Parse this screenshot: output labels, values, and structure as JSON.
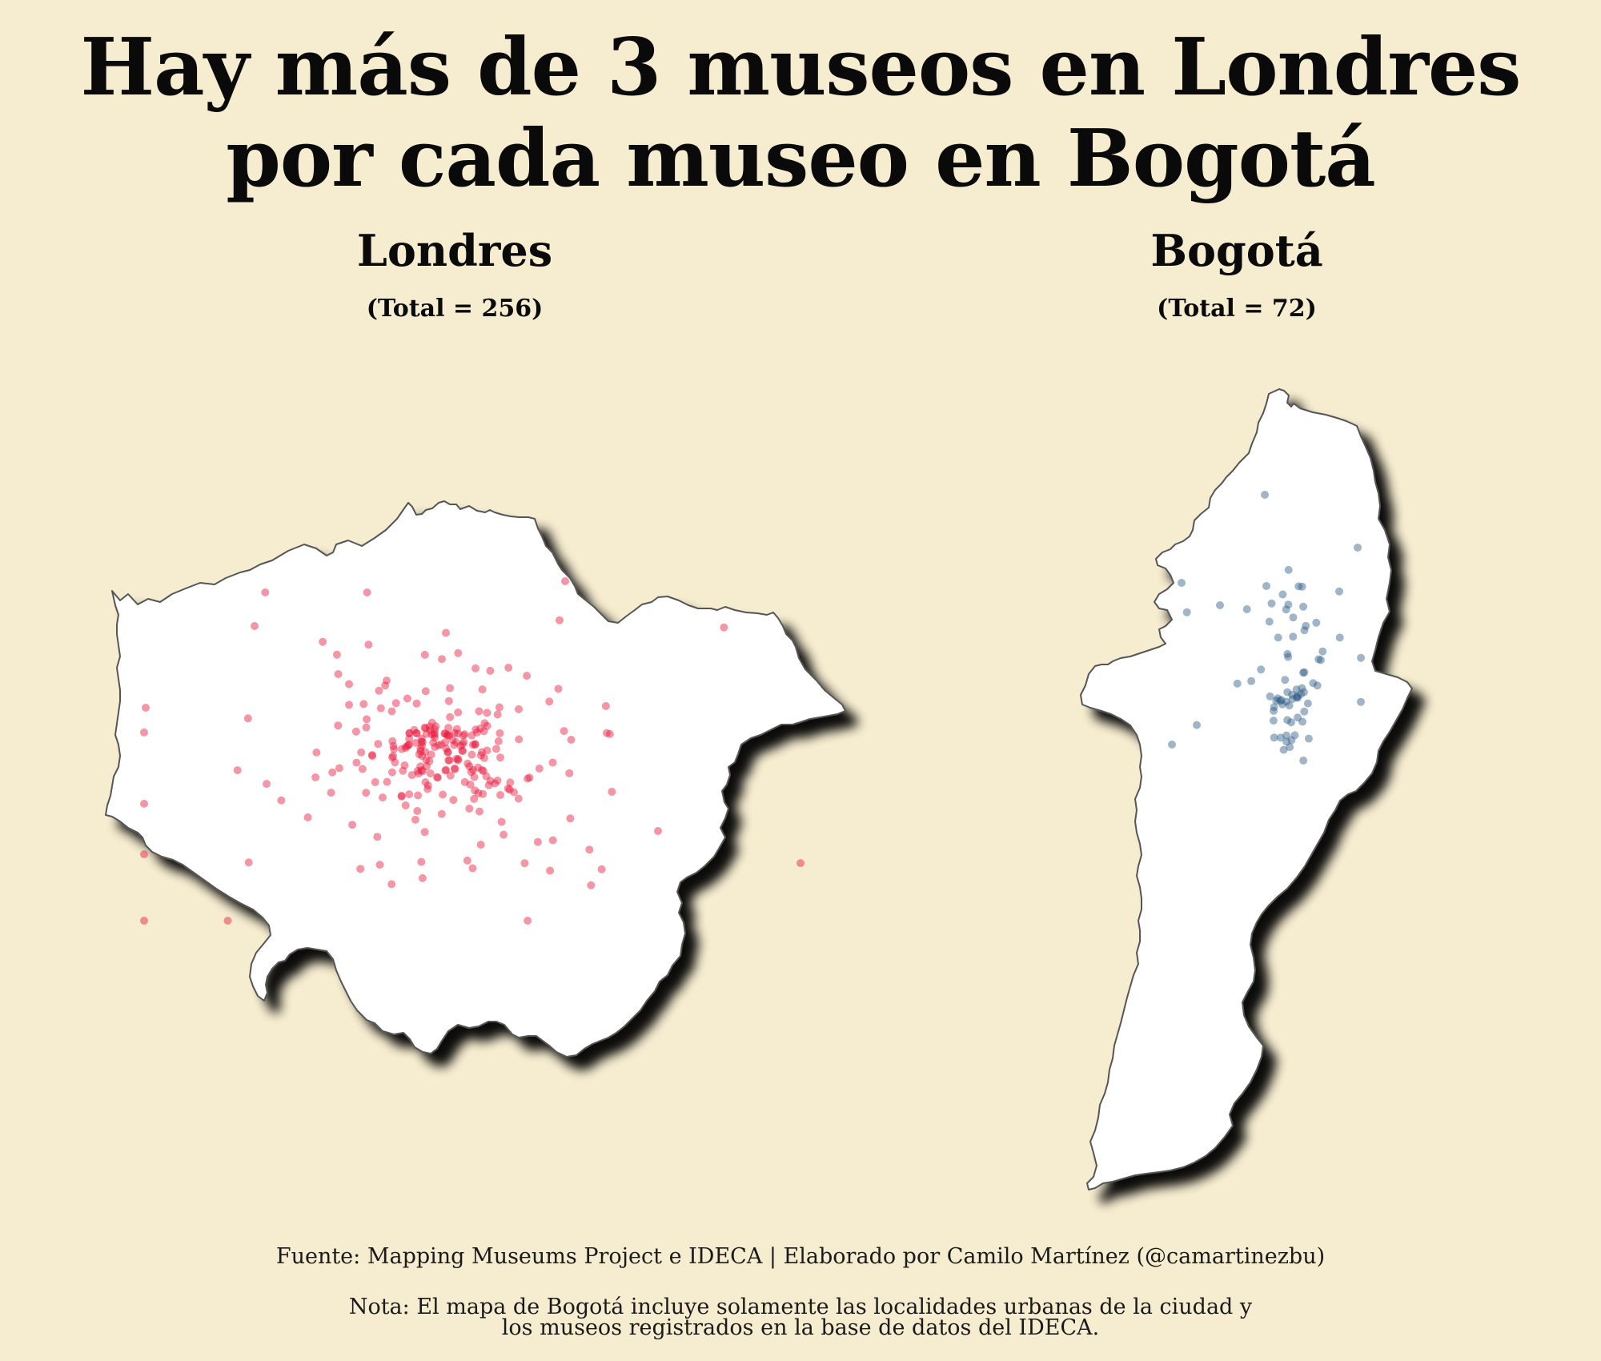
{
  "title": {
    "line1": "Hay más de 3 museos en Londres",
    "line2": "por cada museo en Bogotá"
  },
  "panels": [
    {
      "name": "Londres",
      "total_label": "(Total = 256)",
      "total": 256,
      "point_color": "#e8163a"
    },
    {
      "name": "Bogotá",
      "total_label": "(Total = 72)",
      "total": 72,
      "point_color": "#2c5a85"
    }
  ],
  "footer": {
    "source": "Fuente: Mapping Museums Project e IDECA | Elaborado por Camilo Martínez (@camartinezbu)",
    "note_line1": "Nota: El mapa de Bogotá incluye solamente las localidades urbanas de la ciudad y",
    "note_line2": "los museos registrados en la base de datos del IDECA."
  },
  "colors": {
    "background": "#f6ecd0",
    "land": "#ffffff",
    "outline": "#555555",
    "shadow": "#000000"
  }
}
